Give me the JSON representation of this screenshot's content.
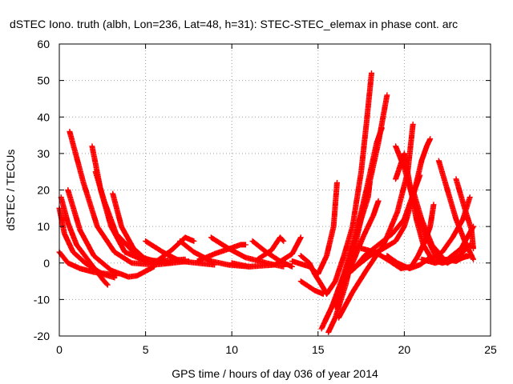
{
  "chart_data": {
    "type": "scatter",
    "title": "dSTEC Iono. truth (albh, Lon=236, Lat=48, h=31): STEC-STEC_elemax in phase cont. arc",
    "xlabel": "GPS time / hours of day 036 of year 2014",
    "ylabel": "dSTEC  / TECUs",
    "xlim": [
      0,
      25
    ],
    "ylim": [
      -20,
      60
    ],
    "xticks": [
      0,
      5,
      10,
      15,
      20,
      25
    ],
    "yticks": [
      -20,
      -10,
      0,
      10,
      20,
      30,
      40,
      50,
      60
    ],
    "grid": true,
    "marker": "+",
    "colors": {
      "series": "#ff0000",
      "grid": "#a0a0a0",
      "axis": "#000000"
    },
    "series": [
      {
        "values": [
          [
            0.0,
            15
          ],
          [
            0.3,
            8
          ],
          [
            0.8,
            3
          ],
          [
            1.5,
            0
          ],
          [
            2.5,
            -3
          ],
          [
            3.2,
            -4
          ]
        ]
      },
      {
        "values": [
          [
            0.1,
            18
          ],
          [
            0.5,
            11
          ],
          [
            1.0,
            5
          ],
          [
            1.8,
            0
          ],
          [
            2.6,
            -5
          ],
          [
            2.8,
            -6
          ]
        ]
      },
      {
        "values": [
          [
            0.0,
            3
          ],
          [
            0.5,
            0
          ],
          [
            1.2,
            -1.5
          ],
          [
            2.0,
            -2.5
          ],
          [
            2.8,
            -3
          ],
          [
            3.3,
            -3.5
          ]
        ]
      },
      {
        "values": [
          [
            0.5,
            20
          ],
          [
            1.2,
            9
          ],
          [
            2.0,
            2
          ],
          [
            3.0,
            -2
          ],
          [
            4.0,
            -3.8
          ],
          [
            4.5,
            -3.5
          ],
          [
            5.5,
            -1
          ]
        ]
      },
      {
        "values": [
          [
            0.6,
            36
          ],
          [
            1.4,
            22
          ],
          [
            2.2,
            10
          ],
          [
            3.2,
            3
          ],
          [
            4.2,
            0
          ],
          [
            5.5,
            -0.5
          ],
          [
            6.5,
            0
          ]
        ]
      },
      {
        "values": [
          [
            1.9,
            32
          ],
          [
            2.4,
            20
          ],
          [
            3.0,
            10
          ],
          [
            3.8,
            3
          ],
          [
            5.0,
            0.5
          ],
          [
            6.2,
            0.5
          ]
        ]
      },
      {
        "values": [
          [
            2.1,
            25
          ],
          [
            2.6,
            17
          ],
          [
            3.3,
            8
          ],
          [
            4.5,
            2
          ],
          [
            5.5,
            0.5
          ],
          [
            7.3,
            1
          ]
        ]
      },
      {
        "values": [
          [
            3.1,
            19
          ],
          [
            3.6,
            10
          ],
          [
            4.3,
            4
          ],
          [
            5.0,
            1
          ],
          [
            6.5,
            0
          ],
          [
            7.5,
            0.5
          ]
        ]
      },
      {
        "values": [
          [
            5.0,
            6
          ],
          [
            6.0,
            3
          ],
          [
            7.0,
            0.5
          ],
          [
            8.0,
            0
          ],
          [
            9.0,
            -0.5
          ]
        ]
      },
      {
        "values": [
          [
            5.5,
            0
          ],
          [
            6.5,
            3.5
          ],
          [
            7.3,
            7
          ],
          [
            7.8,
            6
          ]
        ]
      },
      {
        "values": [
          [
            7.0,
            6
          ],
          [
            7.8,
            3
          ],
          [
            8.8,
            0.5
          ],
          [
            9.8,
            -0.5
          ],
          [
            11.0,
            -1
          ]
        ]
      },
      {
        "values": [
          [
            8.0,
            0.5
          ],
          [
            9.0,
            2.5
          ],
          [
            10.5,
            5
          ],
          [
            10.8,
            5
          ]
        ]
      },
      {
        "values": [
          [
            8.8,
            7
          ],
          [
            9.8,
            4
          ],
          [
            10.8,
            1.5
          ],
          [
            12.0,
            0
          ],
          [
            13.0,
            -1
          ]
        ]
      },
      {
        "values": [
          [
            11.2,
            6
          ],
          [
            12.0,
            3
          ],
          [
            12.8,
            0.5
          ],
          [
            13.5,
            -1
          ]
        ]
      },
      {
        "values": [
          [
            11.5,
            1
          ],
          [
            12.3,
            3.5
          ],
          [
            12.8,
            7
          ],
          [
            13.0,
            6
          ]
        ]
      },
      {
        "values": [
          [
            10.0,
            0
          ],
          [
            11.0,
            -1
          ],
          [
            12.5,
            -0.5
          ],
          [
            13.5,
            2.5
          ],
          [
            14.0,
            7
          ]
        ]
      },
      {
        "values": [
          [
            13.5,
            0.5
          ],
          [
            14.5,
            -1
          ],
          [
            15.0,
            -3
          ],
          [
            15.5,
            2
          ],
          [
            15.9,
            10
          ],
          [
            16.1,
            22
          ]
        ]
      },
      {
        "values": [
          [
            14.0,
            2
          ],
          [
            14.5,
            0
          ],
          [
            14.8,
            -3
          ],
          [
            15.2,
            -6
          ],
          [
            15.5,
            -8.5
          ],
          [
            16.0,
            -5
          ],
          [
            16.5,
            2
          ],
          [
            17.0,
            10
          ],
          [
            17.5,
            25
          ],
          [
            17.8,
            38
          ],
          [
            18.1,
            52
          ]
        ]
      },
      {
        "values": [
          [
            14.0,
            -5
          ],
          [
            14.8,
            -7.5
          ],
          [
            15.3,
            -8.5
          ]
        ]
      },
      {
        "values": [
          [
            15.2,
            -18
          ],
          [
            15.8,
            -12
          ],
          [
            16.5,
            -3
          ],
          [
            17.2,
            8
          ],
          [
            17.8,
            20
          ],
          [
            18.4,
            33
          ],
          [
            18.7,
            37
          ]
        ]
      },
      {
        "values": [
          [
            15.4,
            -16
          ],
          [
            16.2,
            -8
          ],
          [
            17.0,
            4
          ],
          [
            17.8,
            18
          ],
          [
            18.5,
            33
          ],
          [
            19.0,
            46
          ]
        ]
      },
      {
        "values": [
          [
            15.6,
            -19
          ],
          [
            16.0,
            -15
          ],
          [
            16.6,
            -6
          ],
          [
            17.1,
            4
          ],
          [
            17.5,
            12
          ],
          [
            17.9,
            18
          ],
          [
            18.0,
            22
          ]
        ]
      },
      {
        "values": [
          [
            16.0,
            -12
          ],
          [
            16.5,
            -5
          ],
          [
            17.0,
            0
          ],
          [
            17.6,
            7
          ],
          [
            18.2,
            13
          ],
          [
            18.5,
            17
          ]
        ]
      },
      {
        "values": [
          [
            16.2,
            -15
          ],
          [
            17.0,
            -8
          ],
          [
            17.8,
            -2
          ],
          [
            18.8,
            5
          ],
          [
            19.6,
            14
          ],
          [
            20.2,
            25
          ],
          [
            20.5,
            38
          ]
        ]
      },
      {
        "values": [
          [
            16.5,
            -4
          ],
          [
            17.2,
            -1
          ],
          [
            18.0,
            2
          ],
          [
            18.8,
            4
          ],
          [
            19.5,
            6
          ],
          [
            20.0,
            10
          ],
          [
            20.5,
            18
          ],
          [
            21.0,
            28
          ],
          [
            21.3,
            32
          ],
          [
            21.5,
            34
          ]
        ]
      },
      {
        "values": [
          [
            17.0,
            -2
          ],
          [
            17.7,
            2
          ],
          [
            18.5,
            5
          ],
          [
            19.3,
            8
          ],
          [
            20.0,
            12
          ],
          [
            20.6,
            20
          ],
          [
            20.9,
            24
          ]
        ]
      },
      {
        "values": [
          [
            17.5,
            4
          ],
          [
            18.3,
            3
          ],
          [
            19.0,
            1
          ],
          [
            19.8,
            -1.5
          ],
          [
            20.4,
            -1
          ],
          [
            20.8,
            2
          ],
          [
            21.2,
            6
          ],
          [
            21.5,
            10
          ],
          [
            21.7,
            16
          ]
        ]
      },
      {
        "values": [
          [
            19.5,
            23
          ],
          [
            20.0,
            30
          ],
          [
            20.3,
            22
          ],
          [
            20.7,
            12
          ],
          [
            21.1,
            5
          ],
          [
            21.6,
            1
          ],
          [
            22.2,
            0
          ],
          [
            23.0,
            1
          ],
          [
            23.8,
            2
          ]
        ]
      },
      {
        "values": [
          [
            19.5,
            32
          ],
          [
            20.0,
            26
          ],
          [
            20.6,
            16
          ],
          [
            21.2,
            8
          ],
          [
            21.8,
            2
          ],
          [
            22.5,
            0
          ],
          [
            23.2,
            2
          ],
          [
            23.8,
            5
          ]
        ]
      },
      {
        "values": [
          [
            20.5,
            20
          ],
          [
            21.0,
            12
          ],
          [
            21.6,
            5
          ],
          [
            22.3,
            1
          ],
          [
            23.0,
            0.5
          ],
          [
            23.6,
            2
          ]
        ]
      },
      {
        "values": [
          [
            22.0,
            28
          ],
          [
            22.5,
            20
          ],
          [
            23.0,
            12
          ],
          [
            23.5,
            6
          ],
          [
            24.0,
            1
          ]
        ]
      },
      {
        "values": [
          [
            21.5,
            1
          ],
          [
            22.2,
            3
          ],
          [
            22.8,
            7
          ],
          [
            23.4,
            12
          ],
          [
            23.8,
            18
          ]
        ]
      },
      {
        "values": [
          [
            23.0,
            23
          ],
          [
            23.5,
            15
          ],
          [
            23.9,
            9
          ],
          [
            24.0,
            4
          ]
        ]
      },
      {
        "values": [
          [
            19.0,
            2
          ],
          [
            19.6,
            0
          ],
          [
            20.3,
            -1.5
          ],
          [
            20.9,
            -0.5
          ],
          [
            21.5,
            1.5
          ]
        ]
      },
      {
        "values": [
          [
            21.0,
            1
          ],
          [
            21.8,
            0
          ],
          [
            22.5,
            1
          ],
          [
            23.3,
            4
          ],
          [
            24.0,
            10
          ]
        ]
      }
    ]
  }
}
